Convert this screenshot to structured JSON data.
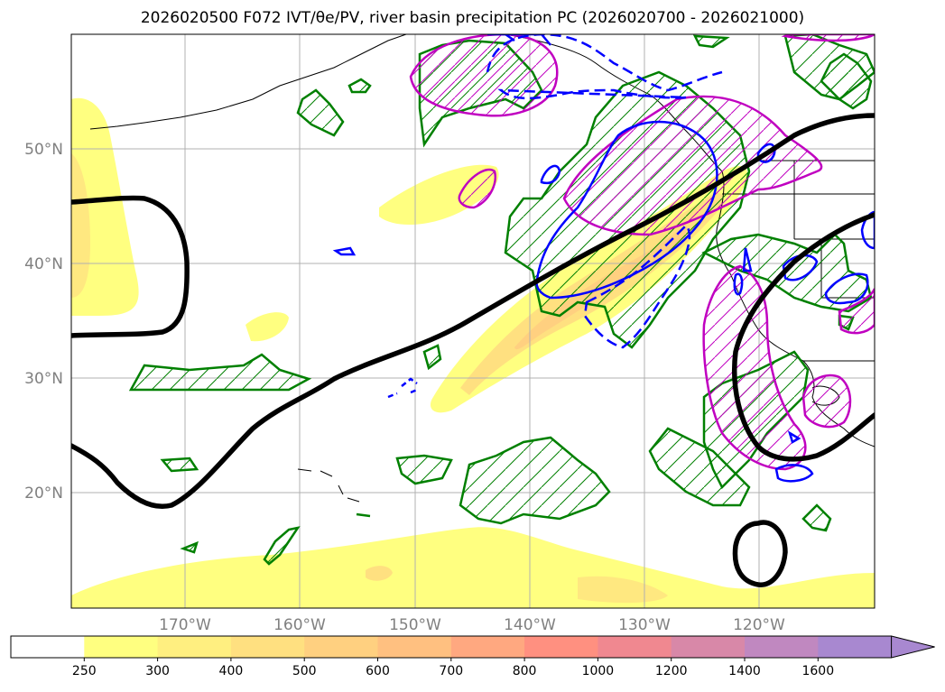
{
  "figure": {
    "title": "2026020500 F072 IVT/θe/PV, river basin precipitation PC (2026020700 - 2026021000)"
  },
  "axes": {
    "lat_labels": [
      "50°N",
      "40°N",
      "30°N",
      "20°N"
    ],
    "lon_labels": [
      "170°W",
      "160°W",
      "150°W",
      "140°W",
      "130°W",
      "120°W"
    ]
  },
  "colorbar": {
    "labels": [
      "250",
      "300",
      "400",
      "500",
      "600",
      "700",
      "800",
      "1000",
      "1200",
      "1400",
      "1600"
    ],
    "colors": [
      "#ffffff",
      "#ffff80",
      "#ffef80",
      "#ffe080",
      "#ffd080",
      "#ffc080",
      "#ffa880",
      "#ff9080",
      "#f08890",
      "#d888a8",
      "#c088c0",
      "#a888d0"
    ],
    "extend": "max"
  },
  "colors": {
    "ivt_shade": "#ffff80",
    "pv_positive": "#0000ff",
    "theta_e": "#008000",
    "precip_pc": "#c000c0",
    "thick_line": "#000000",
    "coast": "#000000",
    "grid": "#b0b0b0"
  }
}
